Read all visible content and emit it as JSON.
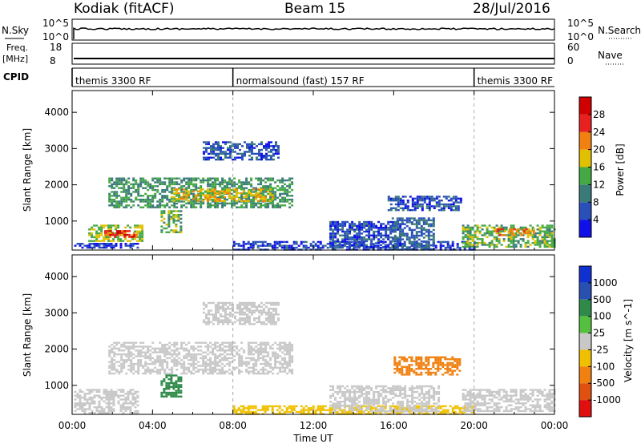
{
  "header": {
    "station": "Kodiak (fitACF)",
    "beam": "Beam 15",
    "date": "28/Jul/2016"
  },
  "top_panels": {
    "nsky_label": "N.Sky",
    "nsky_ticks": [
      "10^5",
      "10^0"
    ],
    "nsearch_label": "N.Search",
    "nsearch_ticks": [
      "10^5",
      "10^0"
    ],
    "freq_label": "Freq.",
    "freq_unit": "[MHz]",
    "freq_ticks": [
      "18",
      "8"
    ],
    "nave_label": "Nave",
    "nave_ticks": [
      "60",
      "0"
    ],
    "cpid_label": "CPID",
    "cpid_segments": [
      {
        "start_hour": 0,
        "end_hour": 8,
        "label": "themis 3300 RF"
      },
      {
        "start_hour": 8,
        "end_hour": 20,
        "label": "normalsound (fast) 157 RF"
      },
      {
        "start_hour": 20,
        "end_hour": 24,
        "label": "themis 3300 RF"
      }
    ]
  },
  "power_colorbar": {
    "title": "Power [dB]",
    "ticks": [
      "4",
      "8",
      "12",
      "16",
      "20",
      "24",
      "28"
    ],
    "colors": [
      "#1010e8",
      "#2850b8",
      "#3a7a78",
      "#44a844",
      "#e0c000",
      "#f08010",
      "#e82020",
      "#d00000"
    ]
  },
  "velocity_colorbar": {
    "title": "Velocity [m s^-1]",
    "ticks": [
      "1000",
      "500",
      "100",
      "25",
      "-25",
      "-100",
      "-500",
      "-1000"
    ],
    "colors": [
      "#1030d0",
      "#2850b0",
      "#2f8a4a",
      "#55c040",
      "#c8c8c8",
      "#f0c000",
      "#f08010",
      "#e05010",
      "#e01010"
    ]
  },
  "axes": {
    "x_label": "Time UT",
    "x_ticks": [
      "00:00",
      "04:00",
      "08:00",
      "12:00",
      "16:00",
      "20:00",
      "00:00"
    ],
    "y_label": "Slant Range [km]",
    "y_ticks": [
      "1000",
      "2000",
      "3000",
      "4000"
    ]
  },
  "chart_data": {
    "type": "heatmap",
    "x_unit": "hours UT",
    "xlim": [
      0,
      24
    ],
    "ylim": [
      200,
      4600
    ],
    "range_unit": "km",
    "mode_change_hours": [
      8,
      20
    ],
    "power_echo_regions": [
      {
        "t0": 0.1,
        "t1": 3.3,
        "r0": 250,
        "r1": 400,
        "power_db": 4
      },
      {
        "t0": 0.8,
        "t1": 3.5,
        "r0": 450,
        "r1": 900,
        "power_db": 16
      },
      {
        "t0": 1.6,
        "t1": 3.2,
        "r0": 550,
        "r1": 750,
        "power_db": 26
      },
      {
        "t0": 1.8,
        "t1": 11.0,
        "r0": 1400,
        "r1": 2200,
        "power_db": 12
      },
      {
        "t0": 4.9,
        "t1": 10.0,
        "r0": 1550,
        "r1": 1900,
        "power_db": 18
      },
      {
        "t0": 4.4,
        "t1": 5.4,
        "r0": 700,
        "r1": 1300,
        "power_db": 14
      },
      {
        "t0": 6.5,
        "t1": 10.3,
        "r0": 2700,
        "r1": 3200,
        "power_db": 6
      },
      {
        "t0": 8.0,
        "t1": 20.0,
        "r0": 200,
        "r1": 450,
        "power_db": 5
      },
      {
        "t0": 12.8,
        "t1": 16.4,
        "r0": 300,
        "r1": 1000,
        "power_db": 5
      },
      {
        "t0": 15.9,
        "t1": 18.0,
        "r0": 250,
        "r1": 1100,
        "power_db": 8
      },
      {
        "t0": 15.7,
        "t1": 19.3,
        "r0": 1300,
        "r1": 1700,
        "power_db": 6
      },
      {
        "t0": 19.4,
        "t1": 24.0,
        "r0": 300,
        "r1": 900,
        "power_db": 14
      },
      {
        "t0": 21.0,
        "t1": 23.0,
        "r0": 600,
        "r1": 800,
        "power_db": 22
      }
    ],
    "velocity_echo_regions": [
      {
        "t0": 0.1,
        "t1": 3.3,
        "r0": 250,
        "r1": 900,
        "velocity_ms": 0
      },
      {
        "t0": 1.8,
        "t1": 11.0,
        "r0": 1300,
        "r1": 2200,
        "velocity_ms": 0
      },
      {
        "t0": 4.4,
        "t1": 5.4,
        "r0": 700,
        "r1": 1300,
        "velocity_ms": 150
      },
      {
        "t0": 6.5,
        "t1": 10.3,
        "r0": 2700,
        "r1": 3300,
        "velocity_ms": 0
      },
      {
        "t0": 8.0,
        "t1": 20.0,
        "r0": 200,
        "r1": 450,
        "velocity_ms": -60
      },
      {
        "t0": 12.8,
        "t1": 18.3,
        "r0": 300,
        "r1": 1000,
        "velocity_ms": 0
      },
      {
        "t0": 16.0,
        "t1": 19.3,
        "r0": 1300,
        "r1": 1800,
        "velocity_ms": -120
      },
      {
        "t0": 19.4,
        "t1": 24.0,
        "r0": 300,
        "r1": 900,
        "velocity_ms": 0
      }
    ]
  }
}
